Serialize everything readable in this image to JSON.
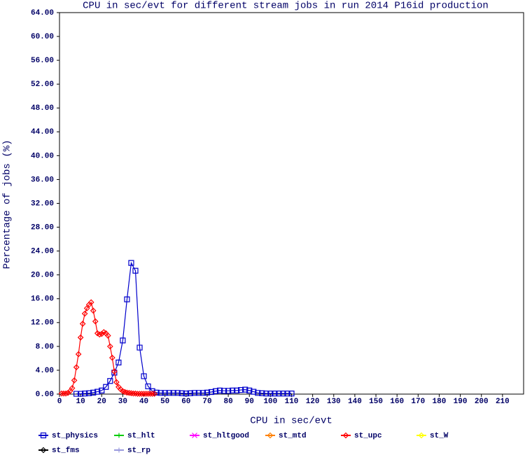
{
  "chart_data": {
    "type": "line",
    "title": "CPU in sec/evt for different stream jobs in run 2014 P16id production",
    "x_label": "CPU in sec/evt",
    "y_label": "Percentage of jobs (%)",
    "xlim": [
      0,
      220
    ],
    "ylim": [
      0,
      64
    ],
    "xticks": [
      0,
      10,
      20,
      30,
      40,
      50,
      60,
      70,
      80,
      90,
      100,
      110,
      120,
      130,
      140,
      150,
      160,
      170,
      180,
      190,
      200,
      210
    ],
    "yticks": [
      {
        "value": 0,
        "label": "0.00"
      },
      {
        "value": 4,
        "label": "4.00"
      },
      {
        "value": 8,
        "label": "8.00"
      },
      {
        "value": 12,
        "label": "12.00"
      },
      {
        "value": 16,
        "label": "16.00"
      },
      {
        "value": 20,
        "label": "20.00"
      },
      {
        "value": 24,
        "label": "24.00"
      },
      {
        "value": 28,
        "label": "28.00"
      },
      {
        "value": 32,
        "label": "32.00"
      },
      {
        "value": 36,
        "label": "36.00"
      },
      {
        "value": 40,
        "label": "40.00"
      },
      {
        "value": 44,
        "label": "44.00"
      },
      {
        "value": 48,
        "label": "48.00"
      },
      {
        "value": 52,
        "label": "52.00"
      },
      {
        "value": 56,
        "label": "56.00"
      },
      {
        "value": 60,
        "label": "60.00"
      },
      {
        "value": 64,
        "label": "64.00"
      }
    ],
    "series": [
      {
        "name": "st_physics",
        "color": "#0000cc",
        "marker": "square",
        "x": [
          8,
          10,
          12,
          14,
          16,
          18,
          20,
          22,
          24,
          26,
          28,
          30,
          32,
          34,
          36,
          38,
          40,
          42,
          44,
          46,
          48,
          50,
          52,
          54,
          56,
          58,
          60,
          62,
          64,
          66,
          68,
          70,
          72,
          74,
          76,
          78,
          80,
          82,
          84,
          86,
          88,
          90,
          92,
          94,
          96,
          98,
          100,
          102,
          104,
          106,
          108,
          110
        ],
        "values": [
          0.05,
          0.05,
          0.1,
          0.15,
          0.25,
          0.4,
          0.6,
          1.2,
          2.2,
          3.6,
          5.3,
          9.0,
          15.9,
          22.0,
          20.7,
          7.8,
          3.0,
          1.3,
          0.5,
          0.25,
          0.2,
          0.2,
          0.2,
          0.2,
          0.2,
          0.15,
          0.1,
          0.15,
          0.2,
          0.2,
          0.2,
          0.25,
          0.35,
          0.5,
          0.6,
          0.55,
          0.55,
          0.6,
          0.6,
          0.7,
          0.75,
          0.6,
          0.4,
          0.2,
          0.15,
          0.1,
          0.1,
          0.1,
          0.1,
          0.1,
          0.1,
          0.1
        ]
      },
      {
        "name": "st_hlt",
        "color": "#00cc00",
        "marker": "plus",
        "x": [],
        "values": []
      },
      {
        "name": "st_hltgood",
        "color": "#ff00ff",
        "marker": "star",
        "x": [],
        "values": []
      },
      {
        "name": "st_mtd",
        "color": "#ff8000",
        "marker": "diamond",
        "x": [],
        "values": []
      },
      {
        "name": "st_upc",
        "color": "#ff0000",
        "marker": "diamond",
        "x": [
          1,
          2,
          3,
          4,
          5,
          6,
          7,
          8,
          9,
          10,
          11,
          12,
          13,
          14,
          15,
          16,
          17,
          18,
          19,
          20,
          21,
          22,
          23,
          24,
          25,
          26,
          27,
          28,
          29,
          30,
          31,
          32,
          33,
          34,
          35,
          36,
          37,
          38,
          39,
          40,
          41,
          42,
          43,
          44,
          45
        ],
        "values": [
          0.1,
          0.1,
          0.1,
          0.2,
          0.5,
          1.0,
          2.3,
          4.5,
          6.7,
          9.5,
          11.8,
          13.5,
          14.4,
          15.0,
          15.4,
          14.0,
          12.2,
          10.2,
          10.0,
          10.1,
          10.4,
          10.2,
          9.8,
          8.0,
          6.1,
          3.8,
          2.0,
          1.2,
          0.8,
          0.5,
          0.35,
          0.25,
          0.2,
          0.15,
          0.1,
          0.1,
          0.05,
          0.05,
          0.05,
          0.05,
          0.05,
          0.05,
          0.05,
          0.05,
          0.05
        ]
      },
      {
        "name": "st_W",
        "color": "#ffff00",
        "marker": "diamond",
        "x": [],
        "values": []
      },
      {
        "name": "st_fms",
        "color": "#000000",
        "marker": "diamond",
        "x": [],
        "values": []
      },
      {
        "name": "st_rp",
        "color": "#9999dd",
        "marker": "plus",
        "x": [],
        "values": []
      }
    ]
  }
}
